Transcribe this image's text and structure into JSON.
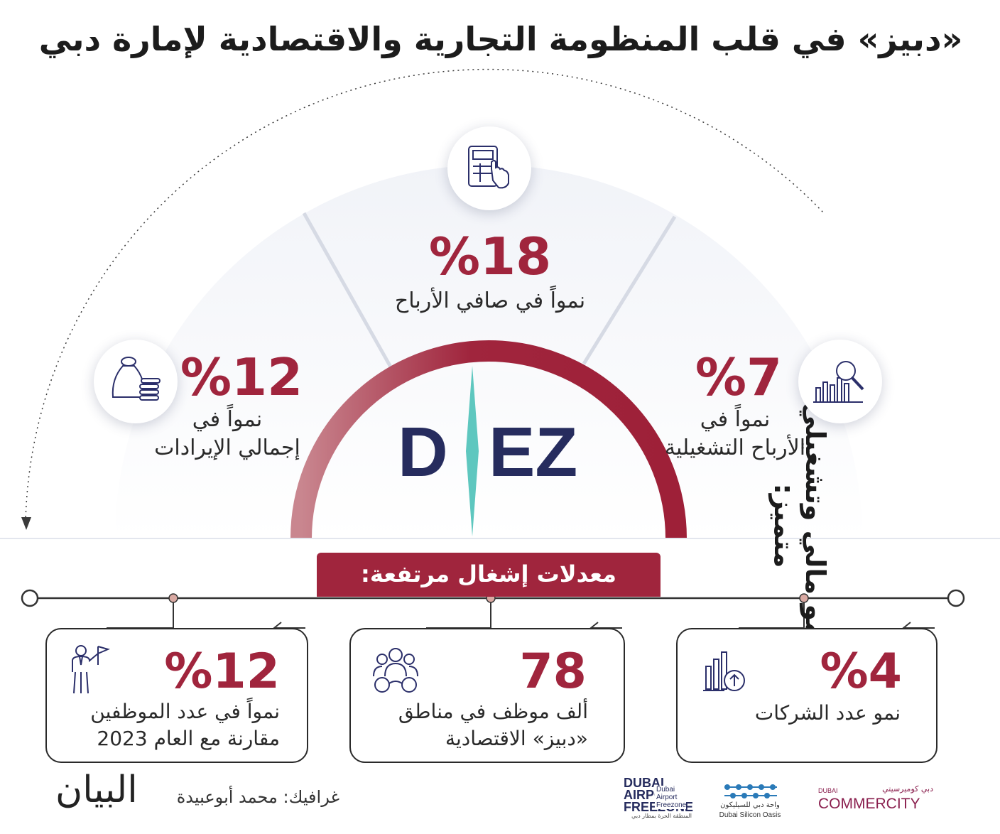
{
  "title": "«دبيز» في قلب المنظومة التجارية والاقتصادية لإمارة دبي",
  "side_caption": "نمو مالي وتشغيلي متميز:",
  "gauge": {
    "center_logo": "DIEZ",
    "items": [
      {
        "value": "%18",
        "caption": "نمواً في صافي الأرباح",
        "icon": "calculator-icon"
      },
      {
        "value": "%12",
        "caption_line1": "نمواً في",
        "caption_line2": "إجمالي الإيرادات",
        "icon": "money-bag-icon"
      },
      {
        "value": "%7",
        "caption_line1": "نمواً في",
        "caption_line2": "الأرباح التشغيلية",
        "icon": "chart-magnifier-icon"
      }
    ]
  },
  "banner": "معدلات إشغال مرتفعة:",
  "cards": [
    {
      "value": "%4",
      "line1": "نمو عدد الشركات",
      "icon": "bar-chart-up-icon"
    },
    {
      "value": "78",
      "line1": "ألف موظف في مناطق",
      "line2": "«دبيز» الاقتصادية",
      "icon": "employees-icon"
    },
    {
      "value": "%12",
      "line1": "نمواً في عدد الموظفين",
      "line2": "مقارنة مع العام 2023",
      "icon": "leader-flag-icon"
    }
  ],
  "footer": {
    "credit": "غرافيك: محمد أبوعبيدة",
    "newspaper": "البيان",
    "logos": {
      "airport": {
        "en1": "DUBAI",
        "en2": "AIRPORT",
        "en3": "FREEZONE",
        "name1": "Dubai",
        "name2": "Airport",
        "name3": "Freezone",
        "ar": "المنطقة الحرة بمطار دبي"
      },
      "silicon": {
        "ar": "واحة دبي للسيليكون",
        "en": "Dubai Silicon Oasis"
      },
      "commercity": {
        "ar": "دبي كوميرسيتي",
        "small": "DUBAI",
        "main": "COMMERCITY"
      }
    }
  },
  "colors": {
    "accent": "#a0253d",
    "navy": "#262c5e",
    "teal": "#5ec7bf"
  }
}
